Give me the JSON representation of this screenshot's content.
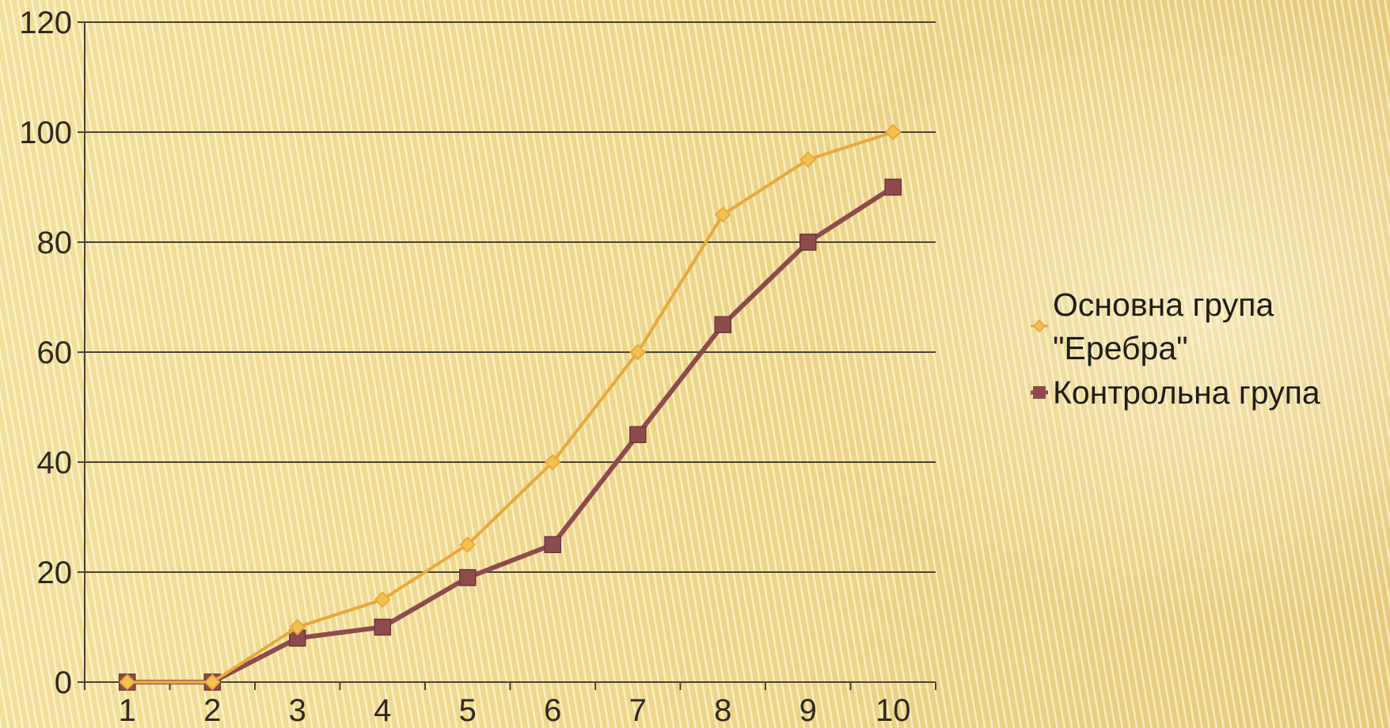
{
  "chart_data": {
    "type": "line",
    "title": "",
    "xlabel": "",
    "ylabel": "",
    "categories": [
      "1",
      "2",
      "3",
      "4",
      "5",
      "6",
      "7",
      "8",
      "9",
      "10"
    ],
    "ylim": [
      0,
      120
    ],
    "yticks": [
      "0",
      "20",
      "40",
      "60",
      "80",
      "100",
      "120"
    ],
    "grid": true,
    "legend_position": "right",
    "series": [
      {
        "name_lines": [
          "Основна група",
          "\"Еребра\""
        ],
        "color": "#e8a93a",
        "marker": "diamond",
        "values": [
          0,
          0,
          10,
          15,
          25,
          40,
          60,
          85,
          95,
          100
        ]
      },
      {
        "name_lines": [
          "Контрольна група"
        ],
        "color": "#8e4b4d",
        "marker": "square",
        "values": [
          0,
          0,
          8,
          10,
          19,
          25,
          45,
          65,
          80,
          90
        ]
      }
    ]
  }
}
